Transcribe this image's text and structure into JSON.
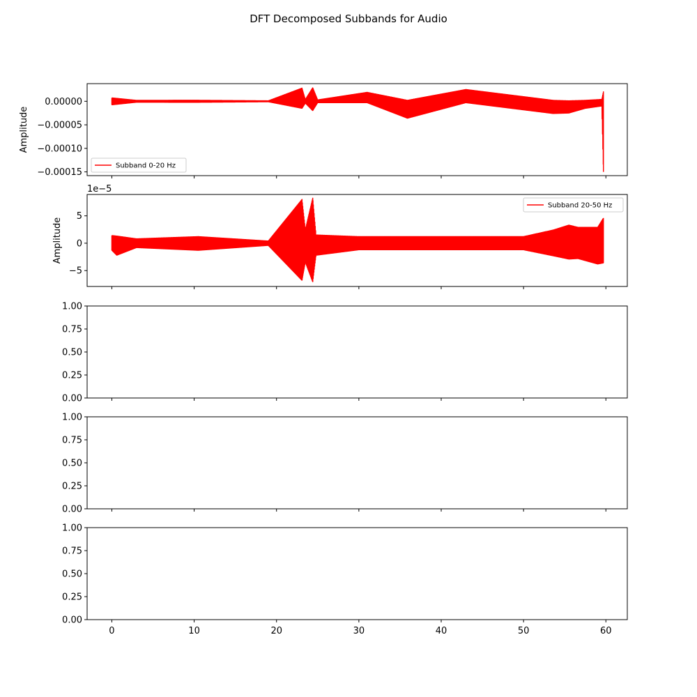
{
  "figure": {
    "title": "DFT Decomposed Subbands for Audio",
    "series_color": "#ff0000"
  },
  "chart_data": [
    {
      "type": "line",
      "ylabel": "Amplitude",
      "xlabel": "",
      "xlim": [
        -3,
        62.6
      ],
      "ylim": [
        -0.000158,
        3.75e-05
      ],
      "yticks": [
        0.0,
        -5e-05,
        -0.0001,
        -0.00015
      ],
      "ytick_labels": [
        "0.00000",
        "−0.00005",
        "−0.00010",
        "−0.00015"
      ],
      "xticks": [
        0,
        10,
        20,
        30,
        40,
        50,
        60
      ],
      "show_xtick_labels": false,
      "offset_label": "",
      "legend": {
        "placement": "lower-left"
      },
      "series": [
        {
          "name": "Subband 0-20 Hz",
          "color": "#ff0000",
          "x_range": [
            0,
            59.7
          ],
          "envelope": [
            [
              0,
              7.2e-06,
              -7.5e-06
            ],
            [
              3,
              2e-06,
              -2e-06
            ],
            [
              10,
              2.2e-06,
              -2.2e-06
            ],
            [
              19,
              1e-06,
              -1e-06
            ],
            [
              23.1,
              2.8e-05,
              -1.5e-05
            ],
            [
              23.5,
              4e-06,
              -4e-06
            ],
            [
              24.4,
              2.9e-05,
              -2e-05
            ],
            [
              25,
              3e-06,
              -3e-06
            ],
            [
              31,
              1.9e-05,
              -3e-06
            ],
            [
              35.9,
              2e-06,
              -3.6e-05
            ],
            [
              43,
              2.5e-05,
              -3e-06
            ],
            [
              53.6,
              2e-06,
              -2.6e-05
            ],
            [
              55.5,
              1e-06,
              -2.5e-05
            ],
            [
              57.5,
              2e-06,
              -1.5e-05
            ],
            [
              59.5,
              4e-06,
              -1e-05
            ],
            [
              59.7,
              2.1e-05,
              -0.00015
            ]
          ]
        }
      ]
    },
    {
      "type": "line",
      "ylabel": "Amplitude",
      "xlabel": "",
      "xlim": [
        -3,
        62.6
      ],
      "ylim": [
        -7.9,
        8.9
      ],
      "yticks": [
        5,
        0,
        -5
      ],
      "ytick_labels": [
        "5",
        "0",
        "−5"
      ],
      "xticks": [
        0,
        10,
        20,
        30,
        40,
        50,
        60
      ],
      "show_xtick_labels": false,
      "offset_label": "1e−5",
      "legend": {
        "placement": "upper-right"
      },
      "series": [
        {
          "name": "Subband 20-50 Hz",
          "color": "#ff0000",
          "x_range": [
            0,
            59.7
          ],
          "envelope": [
            [
              0,
              1.4,
              -1.3
            ],
            [
              0.6,
              1.3,
              -2.2
            ],
            [
              3,
              0.8,
              -0.8
            ],
            [
              10.5,
              1.2,
              -1.3
            ],
            [
              19,
              0.4,
              -0.4
            ],
            [
              23.1,
              8.0,
              -6.8
            ],
            [
              23.5,
              2.5,
              -3.5
            ],
            [
              24.4,
              8.3,
              -7.1
            ],
            [
              24.8,
              1.5,
              -2.2
            ],
            [
              30,
              1.2,
              -1.2
            ],
            [
              50,
              1.2,
              -1.2
            ],
            [
              53.6,
              2.4,
              -2.3
            ],
            [
              55.5,
              3.3,
              -2.9
            ],
            [
              56.6,
              2.9,
              -2.8
            ],
            [
              59.0,
              2.9,
              -3.8
            ],
            [
              59.7,
              4.6,
              -3.6
            ]
          ]
        }
      ]
    },
    {
      "type": "line",
      "ylabel": "",
      "xlabel": "",
      "ylim": [
        0,
        1
      ],
      "yticks": [
        0.0,
        0.25,
        0.5,
        0.75,
        1.0
      ],
      "ytick_labels": [
        "0.00",
        "0.25",
        "0.50",
        "0.75",
        "1.00"
      ],
      "xticks": [
        0,
        10,
        20,
        30,
        40,
        50,
        60
      ],
      "show_xtick_labels": false,
      "series": []
    },
    {
      "type": "line",
      "ylabel": "",
      "xlabel": "",
      "ylim": [
        0,
        1
      ],
      "yticks": [
        0.0,
        0.25,
        0.5,
        0.75,
        1.0
      ],
      "ytick_labels": [
        "0.00",
        "0.25",
        "0.50",
        "0.75",
        "1.00"
      ],
      "xticks": [
        0,
        10,
        20,
        30,
        40,
        50,
        60
      ],
      "show_xtick_labels": false,
      "series": []
    },
    {
      "type": "line",
      "ylabel": "",
      "xlabel": "",
      "xlim": [
        -3,
        62.6
      ],
      "ylim": [
        0,
        1
      ],
      "yticks": [
        0.0,
        0.25,
        0.5,
        0.75,
        1.0
      ],
      "ytick_labels": [
        "0.00",
        "0.25",
        "0.50",
        "0.75",
        "1.00"
      ],
      "xticks": [
        0,
        10,
        20,
        30,
        40,
        50,
        60
      ],
      "xtick_labels": [
        "0",
        "10",
        "20",
        "30",
        "40",
        "50",
        "60"
      ],
      "show_xtick_labels": true,
      "series": []
    }
  ]
}
